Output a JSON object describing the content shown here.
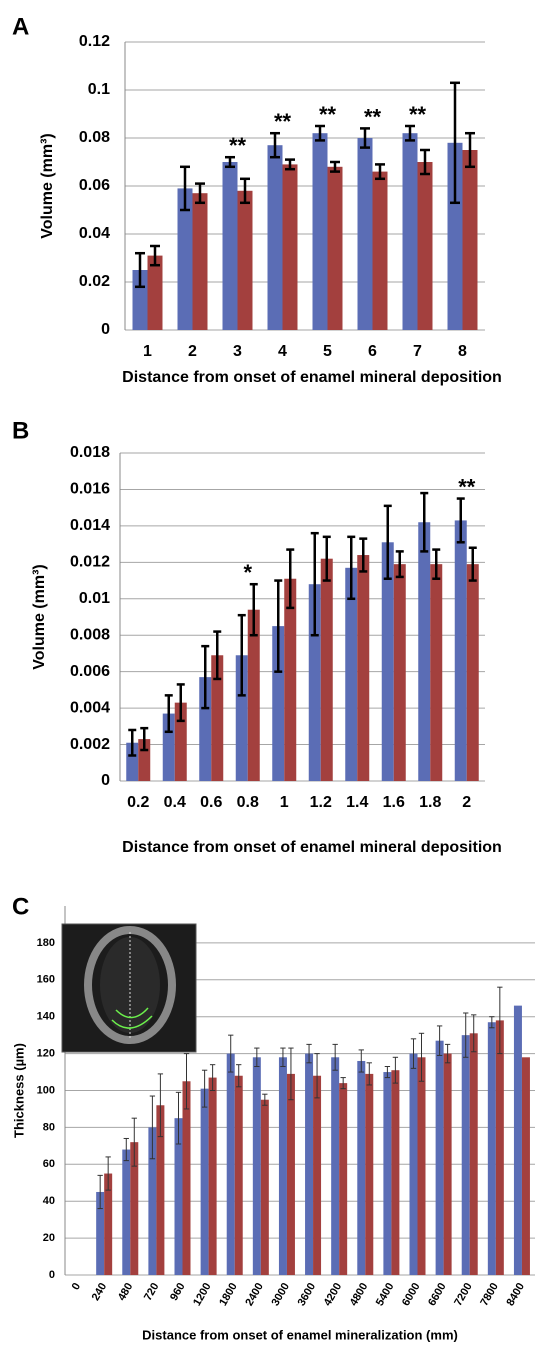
{
  "chart_data": [
    {
      "type": "bar",
      "panel": "A",
      "xlabel": "Distance from onset of enamel  mineral deposition",
      "ylabel": "Volume (mm³)",
      "categories": [
        "1",
        "2",
        "3",
        "4",
        "5",
        "6",
        "7",
        "8"
      ],
      "series": [
        {
          "color": "#5b6db5",
          "values": [
            0.025,
            0.059,
            0.07,
            0.077,
            0.082,
            0.08,
            0.082,
            0.078
          ],
          "errors": [
            0.007,
            0.009,
            0.002,
            0.005,
            0.003,
            0.004,
            0.003,
            0.025
          ]
        },
        {
          "color": "#a3403e",
          "values": [
            0.031,
            0.057,
            0.058,
            0.069,
            0.068,
            0.066,
            0.07,
            0.075
          ],
          "errors": [
            0.004,
            0.004,
            0.005,
            0.002,
            0.002,
            0.003,
            0.005,
            0.007
          ]
        }
      ],
      "significance": [
        null,
        null,
        "**",
        "**",
        "**",
        "**",
        "**",
        null
      ],
      "ylim": [
        0,
        0.12
      ],
      "yticks": [
        0,
        0.02,
        0.04,
        0.06,
        0.08,
        0.1,
        0.12
      ],
      "grid": true
    },
    {
      "type": "bar",
      "panel": "B",
      "xlabel": "Distance from onset of enamel   mineral deposition",
      "ylabel": "Volume (mm³)",
      "categories": [
        "0.2",
        "0.4",
        "0.6",
        "0.8",
        "1",
        "1.2",
        "1.4",
        "1.6",
        "1.8",
        "2"
      ],
      "series": [
        {
          "color": "#5b6db5",
          "values": [
            0.0021,
            0.0037,
            0.0057,
            0.0069,
            0.0085,
            0.0108,
            0.0117,
            0.0131,
            0.0142,
            0.0143
          ],
          "errors": [
            0.0007,
            0.001,
            0.0017,
            0.0022,
            0.0025,
            0.0028,
            0.0017,
            0.002,
            0.0016,
            0.0012
          ]
        },
        {
          "color": "#a3403e",
          "values": [
            0.0023,
            0.0043,
            0.0069,
            0.0094,
            0.0111,
            0.0122,
            0.0124,
            0.0119,
            0.0119,
            0.0119
          ],
          "errors": [
            0.0006,
            0.001,
            0.0013,
            0.0014,
            0.0016,
            0.0012,
            0.0009,
            0.0007,
            0.0008,
            0.0009
          ]
        }
      ],
      "significance": [
        null,
        null,
        null,
        "*",
        null,
        null,
        null,
        null,
        null,
        "**"
      ],
      "ylim": [
        0,
        0.018
      ],
      "yticks": [
        0,
        0.002,
        0.004,
        0.006,
        0.008,
        0.01,
        0.012,
        0.014,
        0.016,
        0.018
      ],
      "grid": true
    },
    {
      "type": "bar",
      "panel": "C",
      "xlabel": "Distance from onset of enamel mineralization (mm)",
      "ylabel": "Thickness (µm)",
      "categories": [
        "0",
        "240",
        "480",
        "720",
        "960",
        "1200",
        "1800",
        "2400",
        "3000",
        "3600",
        "4200",
        "4800",
        "5400",
        "6000",
        "6600",
        "7200",
        "7800",
        "8400"
      ],
      "series": [
        {
          "color": "#5b6db5",
          "values": [
            null,
            45,
            68,
            80,
            85,
            101,
            120,
            118,
            118,
            120,
            118,
            116,
            110,
            120,
            127,
            130,
            137,
            146
          ],
          "errors": [
            null,
            9,
            6,
            17,
            14,
            10,
            10,
            5,
            5,
            5,
            7,
            6,
            3,
            8,
            8,
            12,
            3,
            null
          ]
        },
        {
          "color": "#a3403e",
          "values": [
            null,
            55,
            72,
            92,
            105,
            107,
            108,
            95,
            109,
            108,
            104,
            109,
            111,
            118,
            120,
            131,
            138,
            118
          ],
          "errors": [
            null,
            9,
            13,
            17,
            15,
            7,
            6,
            3,
            14,
            12,
            3,
            6,
            7,
            13,
            5,
            10,
            18,
            null
          ]
        }
      ],
      "ylim": [
        0,
        200
      ],
      "yticks": [
        0,
        20,
        40,
        60,
        80,
        100,
        120,
        140,
        160,
        180
      ],
      "grid": true
    }
  ]
}
